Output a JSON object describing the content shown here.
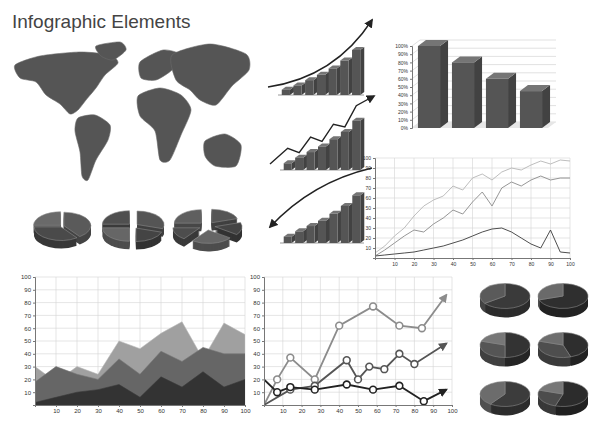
{
  "title": "Infographic Elements",
  "chart_data": [
    {
      "type": "bar",
      "categories": [
        null,
        null,
        null,
        null,
        null,
        null,
        null
      ],
      "values": [
        10,
        18,
        28,
        38,
        50,
        65,
        85
      ],
      "color": "#555555",
      "ylim": [
        0,
        100
      ],
      "tick_labels": false
    },
    {
      "type": "bar",
      "categories": [
        null,
        null,
        null,
        null,
        null,
        null,
        null
      ],
      "values": [
        12,
        22,
        32,
        42,
        55,
        68,
        88
      ],
      "color": "#555555",
      "ylim": [
        0,
        100
      ],
      "tick_labels": false
    },
    {
      "type": "bar",
      "categories": [
        null,
        null,
        null,
        null,
        null,
        null,
        null
      ],
      "values": [
        12,
        22,
        32,
        42,
        55,
        70,
        90
      ],
      "color": "#555555",
      "ylim": [
        0,
        100
      ],
      "tick_labels": false
    },
    {
      "type": "bar",
      "categories": [
        null,
        null,
        null,
        null
      ],
      "values": [
        100,
        80,
        60,
        45
      ],
      "color": "#555555",
      "ylim": [
        0,
        100
      ],
      "yticks": [
        {
          "value": 0,
          "label": "0%"
        },
        {
          "value": 10,
          "label": "10%"
        },
        {
          "value": 20,
          "label": "20%"
        },
        {
          "value": 30,
          "label": "30%"
        },
        {
          "value": 40,
          "label": "40%"
        },
        {
          "value": 50,
          "label": "50%"
        },
        {
          "value": 60,
          "label": "60%"
        },
        {
          "value": 70,
          "label": "70%"
        },
        {
          "value": 80,
          "label": "80%"
        },
        {
          "value": 90,
          "label": "90%"
        },
        {
          "value": 100,
          "label": "100%"
        }
      ],
      "grid": true
    },
    {
      "type": "line",
      "x": [
        0,
        5,
        10,
        15,
        20,
        25,
        30,
        35,
        40,
        45,
        50,
        55,
        60,
        65,
        70,
        75,
        80,
        85,
        90,
        95,
        100
      ],
      "series": [
        {
          "color": "#b5b5b5",
          "values": [
            5,
            12,
            22,
            30,
            42,
            52,
            58,
            62,
            72,
            68,
            80,
            84,
            78,
            86,
            90,
            88,
            93,
            97,
            94,
            98,
            97
          ]
        },
        {
          "color": "#8a8a8a",
          "values": [
            2,
            8,
            15,
            22,
            28,
            26,
            34,
            40,
            48,
            44,
            56,
            66,
            52,
            70,
            76,
            72,
            78,
            82,
            78,
            80,
            80
          ]
        },
        {
          "color": "#3a3a3a",
          "values": [
            2,
            3,
            4,
            5,
            6,
            8,
            10,
            12,
            15,
            18,
            22,
            26,
            29,
            30,
            26,
            20,
            14,
            10,
            28,
            6,
            5
          ]
        }
      ],
      "xlim": [
        0,
        100
      ],
      "xticks": [
        10,
        20,
        30,
        40,
        50,
        60,
        70,
        80,
        90,
        100
      ],
      "ylim": [
        0,
        100
      ],
      "yticks": [
        10,
        20,
        30,
        40,
        50,
        60,
        70,
        80,
        90,
        100
      ],
      "grid": true
    },
    {
      "type": "area",
      "x": [
        0,
        10,
        20,
        30,
        40,
        50,
        60,
        70,
        80,
        90,
        100
      ],
      "series": [
        {
          "color": "#a0a0a0",
          "values": [
            30,
            18,
            30,
            24,
            50,
            44,
            56,
            65,
            36,
            64,
            55
          ]
        },
        {
          "color": "#666666",
          "values": [
            18,
            30,
            24,
            20,
            36,
            24,
            42,
            34,
            45,
            40,
            40
          ]
        },
        {
          "color": "#333333",
          "values": [
            2,
            6,
            10,
            12,
            16,
            6,
            22,
            14,
            26,
            14,
            20
          ]
        }
      ],
      "xlim": [
        0,
        100
      ],
      "xticks": [
        10,
        20,
        30,
        40,
        50,
        60,
        70,
        80,
        90,
        100
      ],
      "ylim": [
        0,
        100
      ],
      "yticks": [
        10,
        20,
        30,
        40,
        50,
        60,
        70,
        80,
        90,
        100
      ],
      "grid": true
    },
    {
      "type": "line",
      "series": [
        {
          "color": "#8c8c8c",
          "marker": "circle",
          "x": [
            0,
            7,
            14,
            27,
            40,
            58,
            72,
            84,
            97
          ],
          "values": [
            0,
            20,
            37,
            20,
            62,
            77,
            62,
            60,
            86
          ]
        },
        {
          "color": "#555555",
          "marker": "circle",
          "x": [
            0,
            14,
            27,
            44,
            50,
            56,
            64,
            72,
            80,
            97
          ],
          "values": [
            0,
            12,
            15,
            35,
            20,
            30,
            28,
            40,
            32,
            48
          ]
        },
        {
          "color": "#222222",
          "marker": "circle",
          "x": [
            0,
            7,
            14,
            27,
            44,
            58,
            72,
            85,
            97
          ],
          "values": [
            20,
            10,
            14,
            12,
            16,
            12,
            15,
            3,
            12
          ]
        }
      ],
      "xlim": [
        0,
        100
      ],
      "xticks": [
        10,
        20,
        30,
        40,
        50,
        60,
        70,
        80,
        90,
        100
      ],
      "ylim": [
        0,
        100
      ],
      "yticks": [
        10,
        20,
        30,
        40,
        50,
        60,
        70,
        80,
        90,
        100
      ],
      "grid": true
    },
    {
      "type": "pie",
      "values": [
        40,
        35,
        25
      ],
      "colors": [
        "#5a5a5a",
        "#4a4a4a",
        "#6a6a6a"
      ]
    },
    {
      "type": "pie",
      "values": [
        30,
        20,
        25,
        25
      ],
      "colors": [
        "#555555",
        "#444444",
        "#666666",
        "#4f4f4f"
      ]
    },
    {
      "type": "pie",
      "values": [
        20,
        15,
        25,
        15,
        25
      ],
      "colors": [
        "#555555",
        "#444444",
        "#666666",
        "#4d4d4d",
        "#5f5f5f"
      ]
    },
    {
      "type": "pie",
      "values": [
        65,
        35
      ],
      "colors": [
        "#3a3a3a",
        "#5a5a5a"
      ]
    },
    {
      "type": "pie",
      "values": [
        70,
        30
      ],
      "colors": [
        "#2f2f2f",
        "#6a6a6a"
      ]
    },
    {
      "type": "pie",
      "values": [
        50,
        30,
        20
      ],
      "colors": [
        "#333333",
        "#555555",
        "#777777"
      ]
    },
    {
      "type": "pie",
      "values": [
        45,
        35,
        20
      ],
      "colors": [
        "#2e2e2e",
        "#4e4e4e",
        "#6e6e6e"
      ]
    },
    {
      "type": "pie",
      "values": [
        60,
        40
      ],
      "colors": [
        "#3c3c3c",
        "#6c6c6c"
      ]
    },
    {
      "type": "pie",
      "values": [
        55,
        25,
        20
      ],
      "colors": [
        "#2c2c2c",
        "#4c4c4c",
        "#777777"
      ]
    }
  ]
}
